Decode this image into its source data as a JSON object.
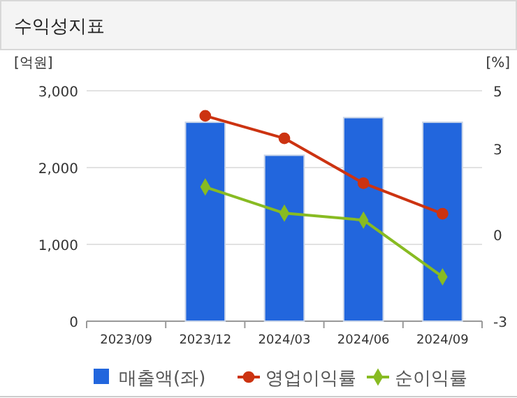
{
  "chart_data": {
    "type": "bar",
    "title": "수익성지표",
    "ylabel": "[억원]",
    "y2label": "[%]",
    "categories": [
      "2023/09",
      "2023/12",
      "2024/03",
      "2024/06",
      "2024/09"
    ],
    "series": [
      {
        "name": "매출액(좌)",
        "color": "#2266dd",
        "values": [
          null,
          2590,
          2160,
          2650,
          2590
        ]
      },
      {
        "name": "영업이익률",
        "type": "line",
        "axis": "y2",
        "marker": "circle",
        "color": "#cc3311",
        "values": [
          null,
          4.13,
          3.35,
          1.79,
          0.73
        ]
      },
      {
        "name": "순이익률",
        "type": "line",
        "axis": "y2",
        "marker": "diamond",
        "color": "#88bb22",
        "values": [
          null,
          1.66,
          0.75,
          0.51,
          -1.46
        ]
      }
    ],
    "ylim": [
      0,
      3000
    ],
    "yticks": [
      {
        "value": 0,
        "label": "0"
      },
      {
        "value": 1000,
        "label": "1,000"
      },
      {
        "value": 2000,
        "label": "2,000"
      },
      {
        "value": 3000,
        "label": "3,000"
      }
    ],
    "y2lim": [
      -3,
      5
    ],
    "y2ticks": [
      -3,
      0,
      3,
      5
    ],
    "grid": "y",
    "legend": "bottom"
  }
}
